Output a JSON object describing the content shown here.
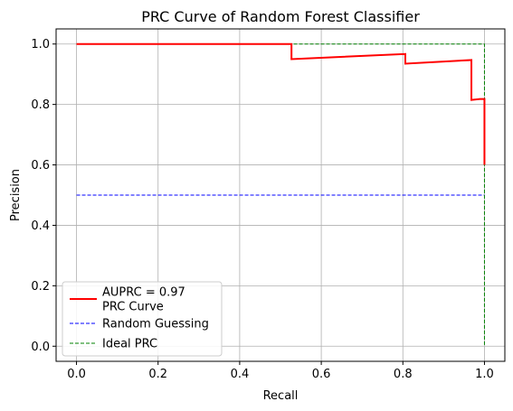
{
  "chart_data": {
    "type": "line",
    "title": "PRC Curve of Random Forest Classifier",
    "xlabel": "Recall",
    "ylabel": "Precision",
    "xlim": [
      -0.05,
      1.05
    ],
    "ylim": [
      -0.05,
      1.05
    ],
    "grid": true,
    "x_ticks": [
      0.0,
      0.2,
      0.4,
      0.6,
      0.8,
      1.0
    ],
    "x_tick_labels": [
      "0.0",
      "0.2",
      "0.4",
      "0.6",
      "0.8",
      "1.0"
    ],
    "y_ticks": [
      0.0,
      0.2,
      0.4,
      0.6,
      0.8,
      1.0
    ],
    "y_tick_labels": [
      "0.0",
      "0.2",
      "0.4",
      "0.6",
      "0.8",
      "1.0"
    ],
    "legend_position": "lower-left",
    "series": [
      {
        "name": "PRC Curve",
        "legend_label": "AUPRC = 0.97\nPRC Curve",
        "color": "#ff0000",
        "style": "solid",
        "x": [
          0.0,
          0.527,
          0.527,
          0.806,
          0.806,
          0.968,
          0.968,
          0.989,
          0.989,
          1.0,
          1.0
        ],
        "y": [
          1.0,
          1.0,
          0.95,
          0.967,
          0.935,
          0.947,
          0.815,
          0.818,
          0.818,
          0.818,
          0.6
        ]
      },
      {
        "name": "Random Guessing",
        "legend_label": "Random Guessing",
        "color": "#0000ff",
        "style": "dashed",
        "x": [
          0.0,
          1.0
        ],
        "y": [
          0.5,
          0.5
        ]
      },
      {
        "name": "Ideal PRC",
        "legend_label": "Ideal PRC",
        "color": "#008000",
        "style": "dashed",
        "x": [
          0.0,
          1.0,
          1.0
        ],
        "y": [
          1.0,
          1.0,
          0.0
        ]
      }
    ]
  }
}
